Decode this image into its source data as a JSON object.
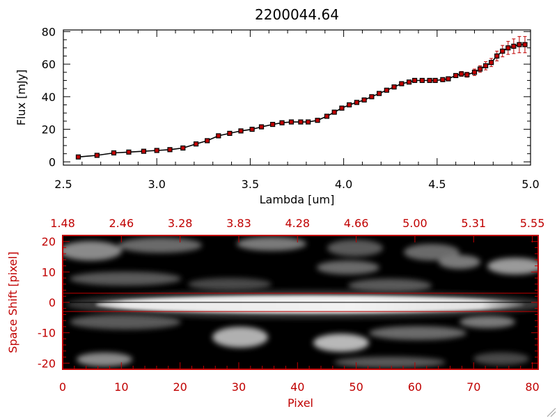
{
  "chart_data": [
    {
      "type": "scatter",
      "title": "2200044.64",
      "xlabel": "Lambda [um]",
      "ylabel": "Flux [mJy]",
      "xlim": [
        2.5,
        5.0
      ],
      "ylim": [
        -2,
        81
      ],
      "xticks": [
        "2.5",
        "3.0",
        "3.5",
        "4.0",
        "4.5",
        "5.0"
      ],
      "yticks": [
        "0",
        "20",
        "40",
        "60",
        "80"
      ],
      "marker_color": "#c00000",
      "line_color": "#000000",
      "errorbar_color": "#c00000",
      "x": [
        2.58,
        2.68,
        2.77,
        2.85,
        2.93,
        3.0,
        3.07,
        3.14,
        3.21,
        3.27,
        3.33,
        3.39,
        3.45,
        3.51,
        3.56,
        3.62,
        3.67,
        3.72,
        3.77,
        3.81,
        3.86,
        3.91,
        3.95,
        3.99,
        4.03,
        4.07,
        4.11,
        4.15,
        4.19,
        4.23,
        4.27,
        4.31,
        4.35,
        4.38,
        4.42,
        4.46,
        4.49,
        4.53,
        4.56,
        4.6,
        4.63,
        4.66,
        4.7,
        4.73,
        4.76,
        4.79,
        4.82,
        4.85,
        4.88,
        4.91,
        4.94,
        4.97
      ],
      "y": [
        3,
        4,
        5.5,
        6,
        6.5,
        7,
        7.5,
        8.5,
        11,
        13,
        16,
        17.5,
        19,
        20,
        21.5,
        23,
        24,
        24.5,
        24.5,
        24.5,
        25.5,
        28,
        30.5,
        33,
        35,
        36.5,
        38,
        40,
        42,
        44,
        46,
        48,
        49,
        50,
        50,
        50,
        50,
        50.5,
        51,
        53,
        54,
        53.5,
        55,
        57,
        59,
        61,
        65,
        68,
        70,
        71,
        72,
        72
      ],
      "yerr": [
        0.5,
        0.5,
        0.5,
        0.5,
        0.5,
        0.5,
        0.5,
        0.5,
        0.5,
        0.5,
        0.5,
        0.5,
        0.5,
        0.5,
        0.5,
        0.5,
        0.5,
        0.5,
        0.5,
        0.5,
        0.5,
        0.5,
        0.5,
        0.5,
        0.5,
        0.5,
        0.5,
        0.5,
        0.5,
        0.5,
        0.5,
        0.5,
        0.5,
        0.5,
        0.5,
        0.6,
        0.7,
        0.8,
        1,
        1.2,
        1.5,
        1.5,
        2,
        2,
        2.5,
        2.5,
        3,
        3.5,
        4,
        4.5,
        5,
        5
      ]
    },
    {
      "type": "heatmap",
      "xlabel": "Pixel",
      "ylabel": "Space Shift [pixel]",
      "xlim": [
        0,
        81
      ],
      "ylim": [
        -22,
        22
      ],
      "xticks": [
        "0",
        "10",
        "20",
        "30",
        "40",
        "50",
        "60",
        "70",
        "80"
      ],
      "yticks": [
        "-20",
        "-10",
        "0",
        "10",
        "20"
      ],
      "top_axis_ticks": [
        "1.48",
        "2.46",
        "3.28",
        "3.83",
        "4.28",
        "4.66",
        "5.00",
        "5.31",
        "5.55"
      ],
      "colormap": "grayscale",
      "axis_color": "#c00000",
      "aperture_lines_y": [
        -3,
        3
      ],
      "trace_center_y": 0
    }
  ]
}
